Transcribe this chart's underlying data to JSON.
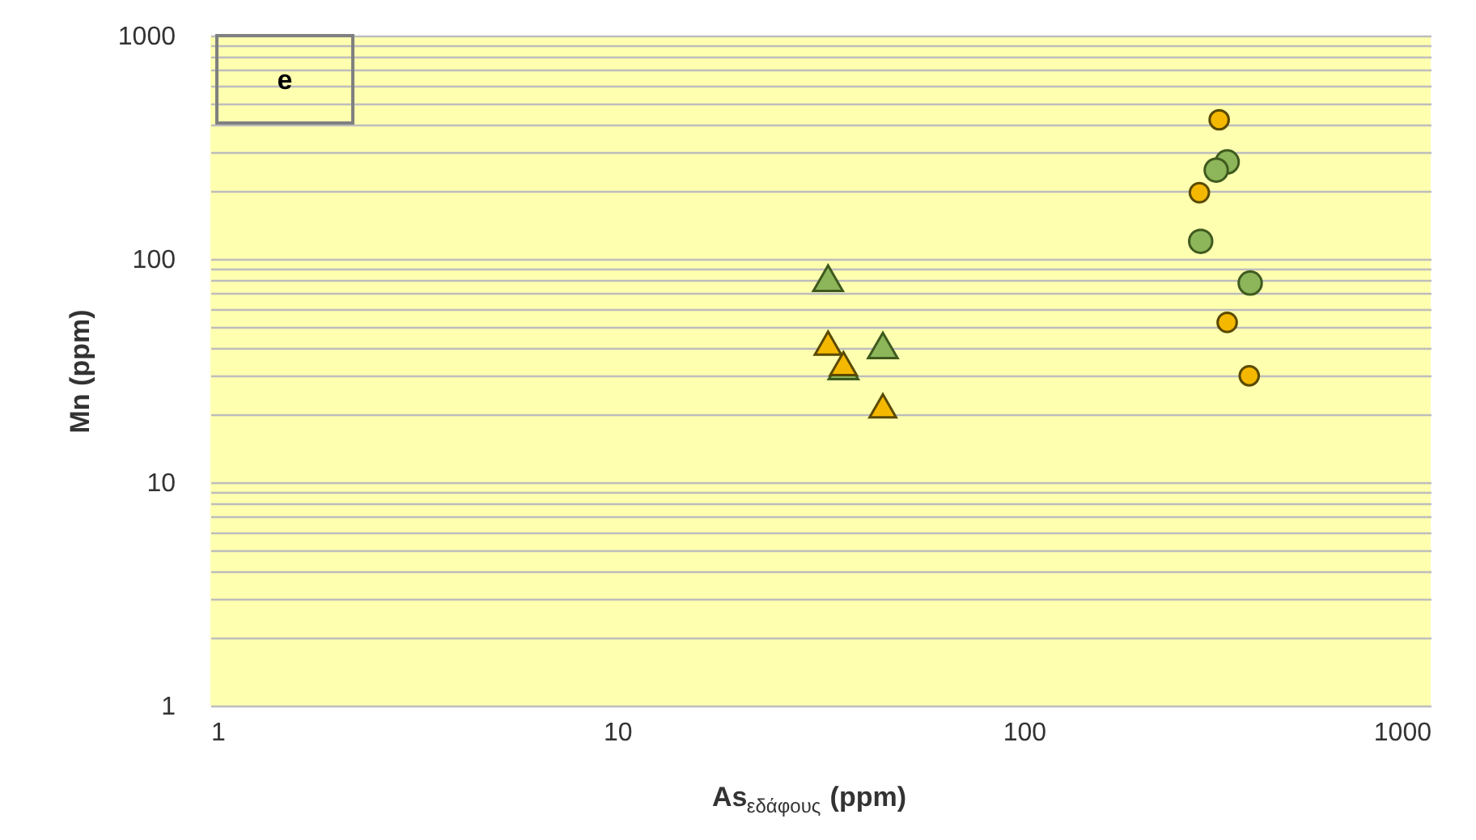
{
  "chart_data": {
    "type": "scatter",
    "xlabel": "As$_{εδάφους}$ (ppm)",
    "ylabel": "Mn  (ppm)",
    "log": "xy",
    "grid": "y",
    "annotations": [
      "e"
    ],
    "xlim": [
      1,
      1000
    ],
    "xticks": [
      1,
      10,
      100,
      1000
    ],
    "ylim": [
      1,
      1000
    ],
    "yticks": [
      1,
      {
        "value": 2,
        "label": null
      },
      {
        "value": 3,
        "label": null
      },
      {
        "value": 4,
        "label": null
      },
      {
        "value": 5,
        "label": null
      },
      {
        "value": 6,
        "label": null
      },
      {
        "value": 7,
        "label": null
      },
      {
        "value": 8,
        "label": null
      },
      {
        "value": 9,
        "label": null
      },
      10,
      {
        "value": 20,
        "label": null
      },
      {
        "value": 30,
        "label": null
      },
      {
        "value": 40,
        "label": null
      },
      {
        "value": 50,
        "label": null
      },
      {
        "value": 60,
        "label": null
      },
      {
        "value": 70,
        "label": null
      },
      {
        "value": 80,
        "label": null
      },
      {
        "value": 90,
        "label": null
      },
      100,
      {
        "value": 200,
        "label": null
      },
      {
        "value": 300,
        "label": null
      },
      {
        "value": 400,
        "label": null
      },
      {
        "value": 500,
        "label": null
      },
      {
        "value": 600,
        "label": null
      },
      {
        "value": 700,
        "label": null
      },
      {
        "value": 800,
        "label": null
      },
      {
        "value": 900,
        "label": null
      },
      1000
    ],
    "series": [
      {
        "color": "#8db55a",
        "marker": "triangle",
        "x": [
          33,
          45,
          36
        ],
        "values": [
          82,
          41,
          33
        ]
      },
      {
        "color": "#f5b800",
        "marker": "triangle",
        "x": [
          33,
          36,
          45
        ],
        "values": [
          42,
          34,
          22
        ]
      },
      {
        "color": "#8db55a",
        "marker": "circle",
        "x": [
          316,
          297,
          272,
          360
        ],
        "values": [
          272,
          250,
          120,
          78
        ]
      },
      {
        "color": "#f5b800",
        "marker": "circle",
        "x": [
          302,
          270,
          316,
          358
        ],
        "values": [
          420,
          198,
          52,
          30
        ]
      }
    ]
  }
}
